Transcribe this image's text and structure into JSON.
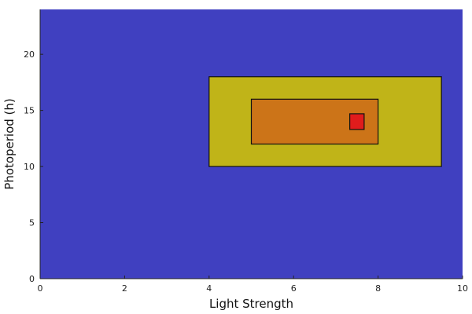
{
  "chart_data": {
    "type": "heatmap",
    "title": "",
    "xlabel": "Light Strength",
    "ylabel": "Photoperiod (h)",
    "xlim": [
      0,
      10
    ],
    "ylim": [
      0,
      24
    ],
    "x_ticks": [
      0,
      2,
      4,
      6,
      8,
      10
    ],
    "y_ticks": [
      0,
      5,
      10,
      15,
      20
    ],
    "grid": false,
    "legend": "none",
    "background_region": {
      "name": "",
      "color": "#4040c0"
    },
    "regions": [
      {
        "name": "",
        "x": [
          4,
          9.5
        ],
        "y": [
          10,
          18
        ],
        "color": "#c0b418"
      },
      {
        "name": "",
        "x": [
          5,
          8
        ],
        "y": [
          12,
          16
        ],
        "color": "#cc7418"
      },
      {
        "name": "",
        "x": [
          7.33,
          7.67
        ],
        "y": [
          13.3,
          14.7
        ],
        "color": "#e01c1c"
      }
    ]
  }
}
